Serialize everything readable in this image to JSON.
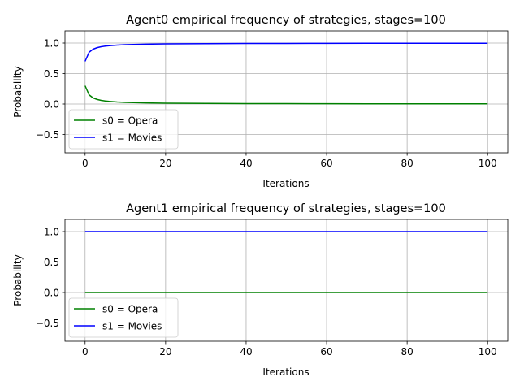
{
  "chart_data": [
    {
      "type": "line",
      "title": "Agent0 empirical frequency of strategies, stages=100",
      "xlabel": "Iterations",
      "ylabel": "Probability",
      "xlim": [
        -5,
        105
      ],
      "ylim": [
        -0.8,
        1.2
      ],
      "xticks": [
        0,
        20,
        40,
        60,
        80,
        100
      ],
      "yticks": [
        -0.5,
        0.0,
        0.5,
        1.0
      ],
      "xtick_labels": [
        "0",
        "20",
        "40",
        "60",
        "80",
        "100"
      ],
      "ytick_labels": [
        "−0.5",
        "0.0",
        "0.5",
        "1.0"
      ],
      "grid": true,
      "legend": "lower-left",
      "series": [
        {
          "name": "s0 = Opera",
          "color": "#008000",
          "x": [
            0,
            1,
            2,
            3,
            4,
            5,
            6,
            8,
            10,
            12,
            15,
            20,
            25,
            30,
            40,
            50,
            60,
            70,
            80,
            90,
            100
          ],
          "y": [
            0.3,
            0.15,
            0.1,
            0.075,
            0.06,
            0.05,
            0.043,
            0.033,
            0.027,
            0.023,
            0.019,
            0.014,
            0.012,
            0.01,
            0.007,
            0.006,
            0.005,
            0.004,
            0.004,
            0.003,
            0.003
          ]
        },
        {
          "name": "s1 = Movies",
          "color": "#0000ff",
          "x": [
            0,
            1,
            2,
            3,
            4,
            5,
            6,
            8,
            10,
            12,
            15,
            20,
            25,
            30,
            40,
            50,
            60,
            70,
            80,
            90,
            100
          ],
          "y": [
            0.7,
            0.85,
            0.9,
            0.925,
            0.94,
            0.95,
            0.957,
            0.967,
            0.973,
            0.977,
            0.981,
            0.986,
            0.988,
            0.99,
            0.993,
            0.994,
            0.995,
            0.996,
            0.996,
            0.997,
            0.997
          ]
        }
      ]
    },
    {
      "type": "line",
      "title": "Agent1 empirical frequency of strategies, stages=100",
      "xlabel": "Iterations",
      "ylabel": "Probability",
      "xlim": [
        -5,
        105
      ],
      "ylim": [
        -0.8,
        1.2
      ],
      "xticks": [
        0,
        20,
        40,
        60,
        80,
        100
      ],
      "yticks": [
        -0.5,
        0.0,
        0.5,
        1.0
      ],
      "xtick_labels": [
        "0",
        "20",
        "40",
        "60",
        "80",
        "100"
      ],
      "ytick_labels": [
        "−0.5",
        "0.0",
        "0.5",
        "1.0"
      ],
      "grid": true,
      "legend": "lower-left",
      "series": [
        {
          "name": "s0 = Opera",
          "color": "#008000",
          "x": [
            0,
            100
          ],
          "y": [
            0.0,
            0.0
          ]
        },
        {
          "name": "s1 = Movies",
          "color": "#0000ff",
          "x": [
            0,
            100
          ],
          "y": [
            1.0,
            1.0
          ]
        }
      ]
    }
  ]
}
